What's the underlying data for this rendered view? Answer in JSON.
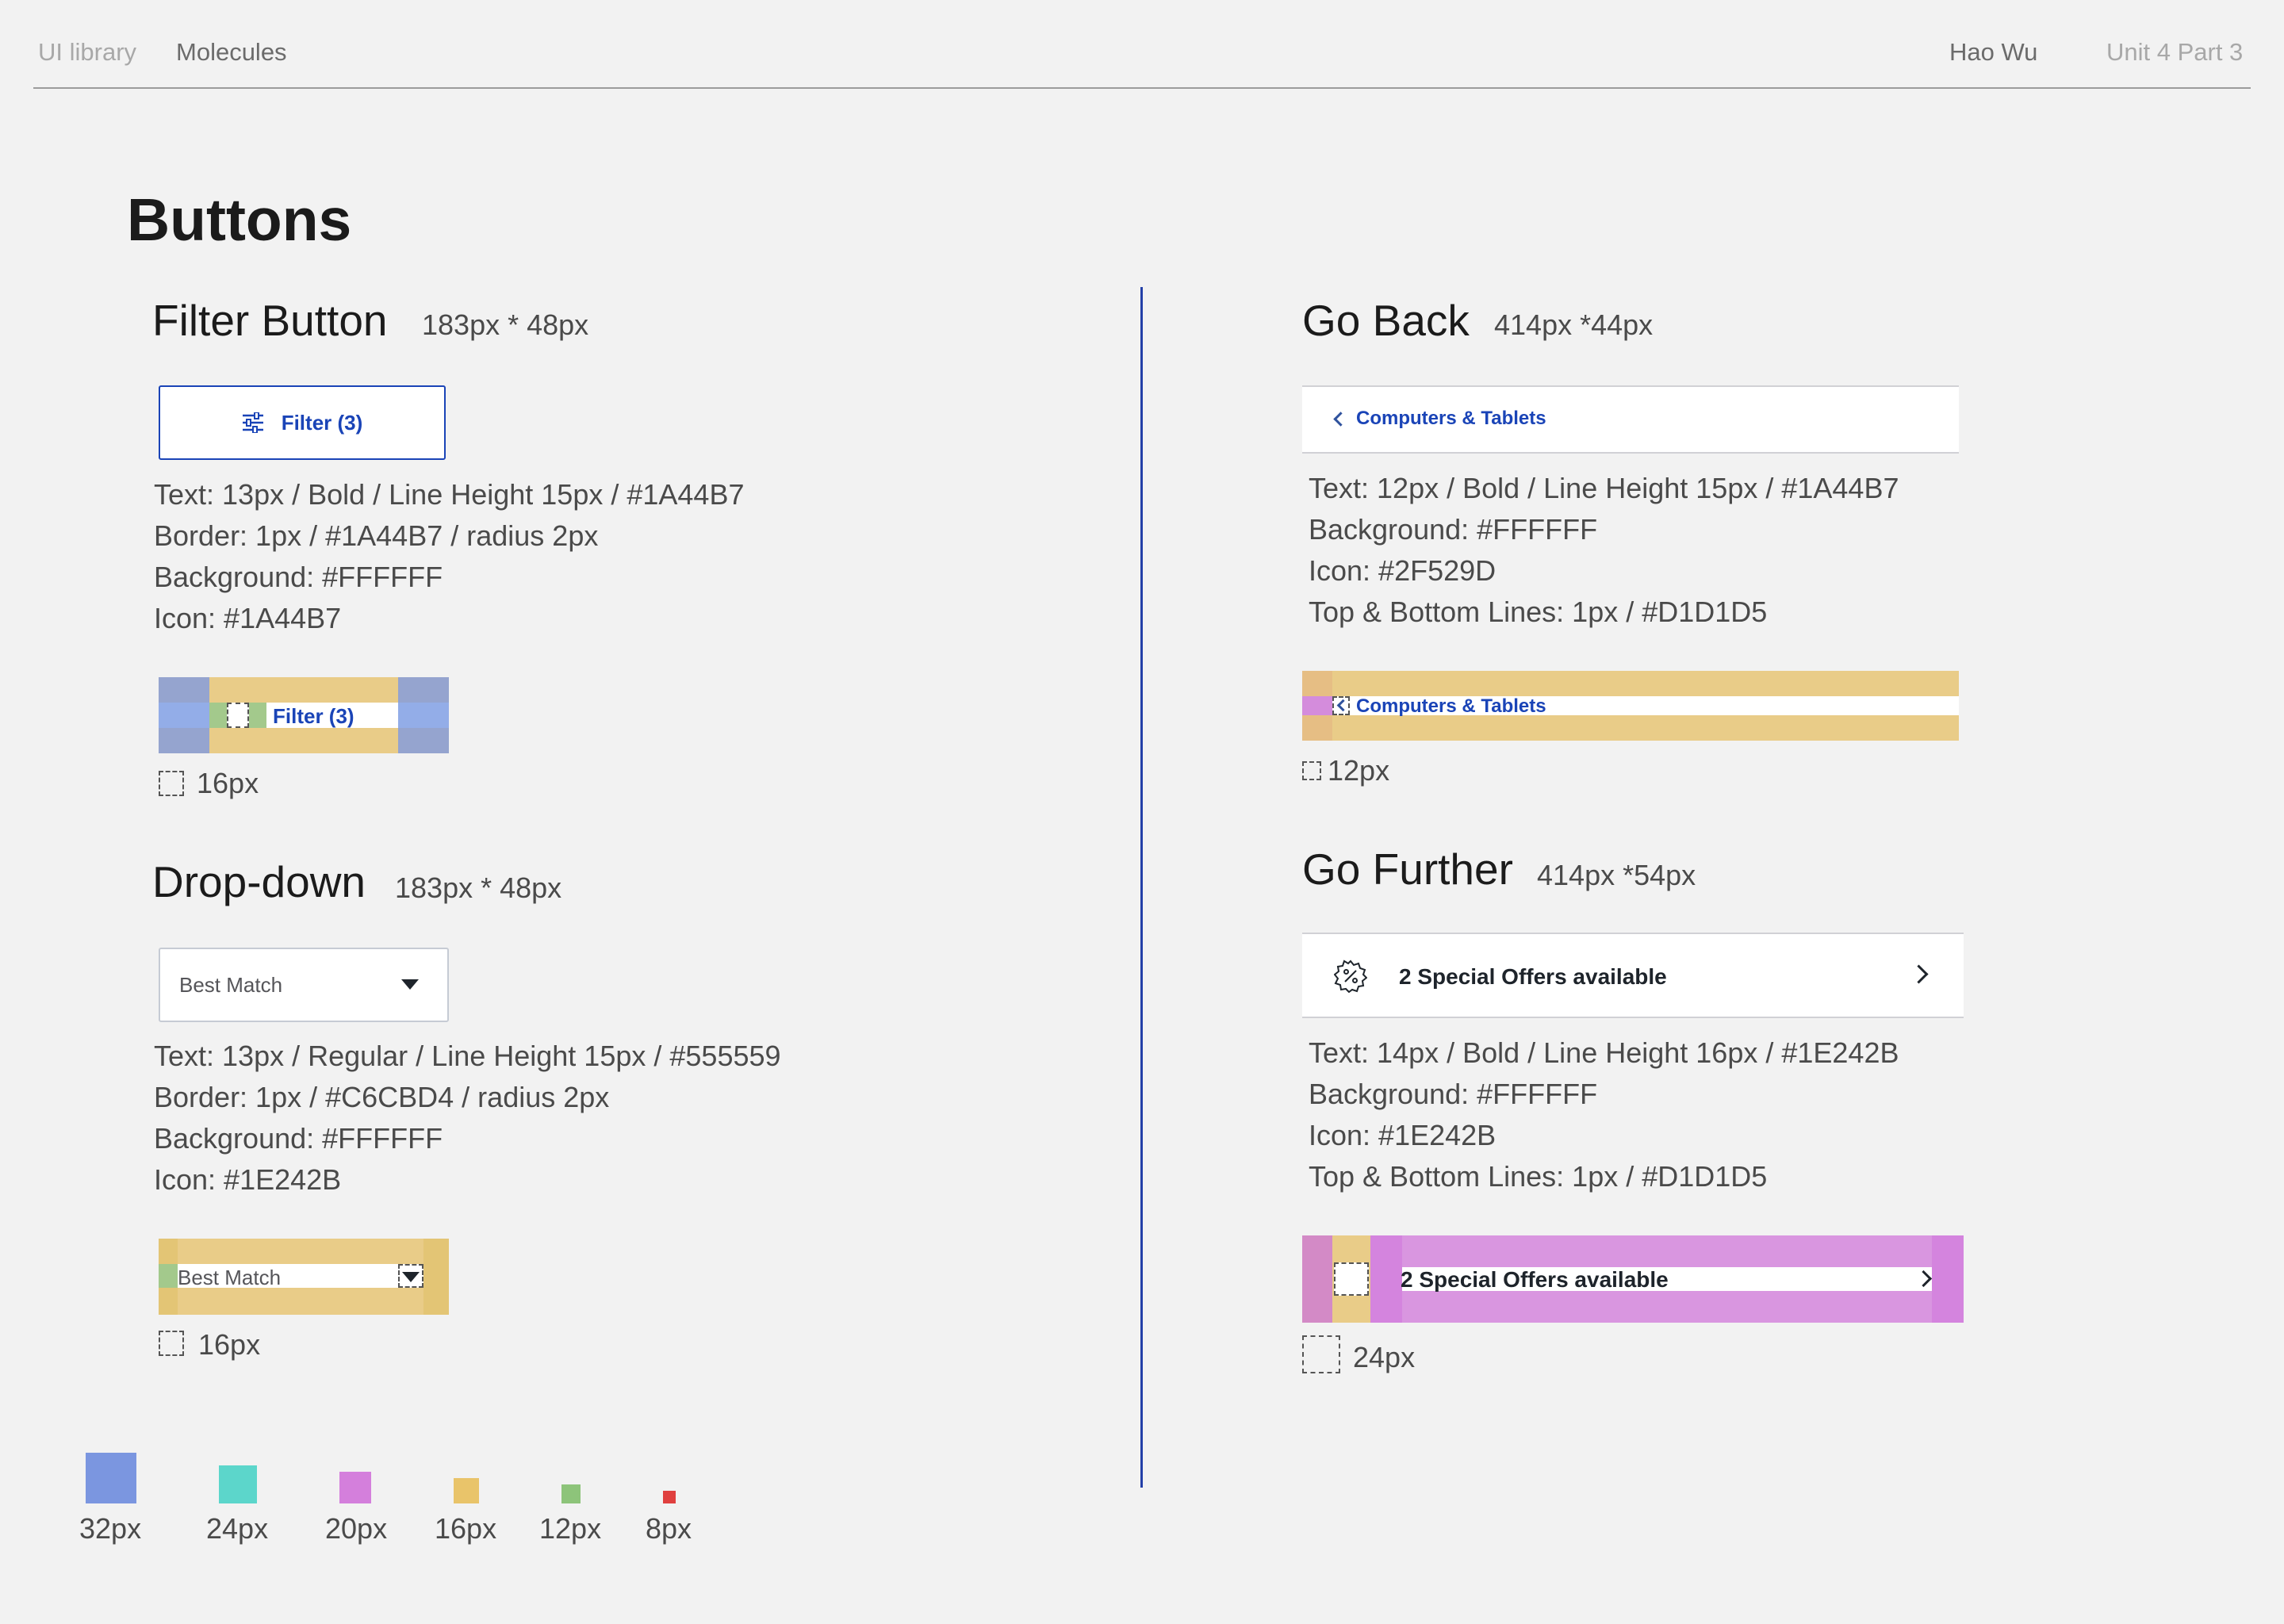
{
  "nav": {
    "breadcrumb_root": "UI library",
    "breadcrumb_current": "Molecules",
    "author": "Hao Wu",
    "unit": "Unit 4 Part 3"
  },
  "page_title": "Buttons",
  "filter_button": {
    "heading": "Filter Button",
    "dimensions": "183px * 48px",
    "label": "Filter (3)",
    "specs": [
      "Text: 13px / Bold / Line Height 15px / #1A44B7",
      "Border: 1px / #1A44B7 / radius 2px",
      "Background: #FFFFFF",
      "Icon: #1A44B7"
    ],
    "spacing_label": "16px"
  },
  "dropdown": {
    "heading": "Drop-down",
    "dimensions": "183px * 48px",
    "value": "Best Match",
    "specs": [
      "Text: 13px / Regular / Line Height 15px / #555559",
      "Border: 1px / #C6CBD4 / radius 2px",
      "Background: #FFFFFF",
      "Icon: #1E242B"
    ],
    "spacing_label": "16px"
  },
  "go_back": {
    "heading": "Go Back",
    "dimensions": "414px *44px",
    "label": "Computers & Tablets",
    "specs": [
      "Text: 12px / Bold / Line Height 15px / #1A44B7",
      "Background: #FFFFFF",
      "Icon: #2F529D",
      "Top & Bottom Lines: 1px / #D1D1D5"
    ],
    "spacing_label": "12px"
  },
  "go_further": {
    "heading": "Go Further",
    "dimensions": "414px *54px",
    "label": "2 Special Offers available",
    "specs": [
      "Text: 14px / Bold / Line Height 16px / #1E242B",
      "Background: #FFFFFF",
      "Icon: #1E242B",
      "Top & Bottom Lines: 1px / #D1D1D5"
    ],
    "spacing_label": "24px"
  },
  "spacing_legend": [
    {
      "label": "32px",
      "color": "#7B96E0"
    },
    {
      "label": "24px",
      "color": "#5CD6CB"
    },
    {
      "label": "20px",
      "color": "#D47FDC"
    },
    {
      "label": "16px",
      "color": "#E9C46A"
    },
    {
      "label": "12px",
      "color": "#8DC47A"
    },
    {
      "label": "8px",
      "color": "#E0403F"
    }
  ],
  "colors": {
    "primary_blue": "#1A44B7",
    "icon_blue": "#2F529D",
    "dark_text": "#1E242B",
    "regular_text": "#555559",
    "border_gray": "#C6CBD4",
    "line_gray": "#D1D1D5"
  },
  "icons": {
    "filter": "sliders-icon",
    "dropdown": "caret-down-icon",
    "back": "chevron-left-icon",
    "offer": "percent-badge-icon",
    "forward": "chevron-right-icon"
  }
}
